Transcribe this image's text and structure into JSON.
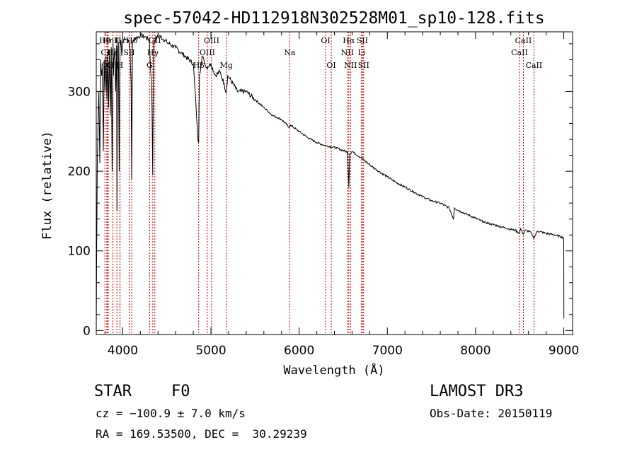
{
  "chart_data": {
    "type": "line",
    "title": "spec-57042-HD112918N302528M01_sp10-128.fits",
    "xlabel": "Wavelength (Å)",
    "ylabel": "Flux (relative)",
    "xlim": [
      3700,
      9100
    ],
    "ylim": [
      -5,
      375
    ],
    "xticks": [
      4000,
      5000,
      6000,
      7000,
      8000,
      9000
    ],
    "yticks": [
      0,
      100,
      200,
      300
    ],
    "series": [
      {
        "name": "flux",
        "x": [
          3700,
          3705,
          3712,
          3720,
          3730,
          3740,
          3750,
          3760,
          3770,
          3780,
          3790,
          3800,
          3810,
          3820,
          3830,
          3840,
          3850,
          3860,
          3870,
          3880,
          3890,
          3895,
          3900,
          3910,
          3920,
          3930,
          3934,
          3940,
          3950,
          3960,
          3965,
          3970,
          3975,
          3980,
          3990,
          4000,
          4020,
          4050,
          4080,
          4095,
          4102,
          4110,
          4130,
          4160,
          4200,
          4250,
          4300,
          4330,
          4340,
          4350,
          4380,
          4420,
          4500,
          4600,
          4700,
          4800,
          4830,
          4850,
          4861,
          4870,
          4900,
          4950,
          5000,
          5050,
          5100,
          5150,
          5172,
          5190,
          5250,
          5300,
          5400,
          5500,
          5600,
          5700,
          5800,
          5890,
          5900,
          6000,
          6100,
          6200,
          6300,
          6400,
          6500,
          6550,
          6563,
          6575,
          6600,
          6700,
          6800,
          6900,
          7000,
          7100,
          7200,
          7300,
          7400,
          7500,
          7600,
          7700,
          7750,
          7760,
          7800,
          7900,
          8000,
          8100,
          8200,
          8300,
          8400,
          8450,
          8498,
          8510,
          8542,
          8560,
          8620,
          8662,
          8700,
          8800,
          8900,
          8990,
          9000,
          9001
        ],
        "y": [
          0,
          100,
          212,
          260,
          300,
          210,
          340,
          320,
          330,
          225,
          340,
          300,
          345,
          290,
          350,
          280,
          352,
          270,
          356,
          200,
          360,
          320,
          340,
          355,
          300,
          358,
          150,
          350,
          362,
          200,
          330,
          355,
          360,
          365,
          345,
          360,
          368,
          365,
          360,
          310,
          190,
          360,
          366,
          368,
          370,
          369,
          365,
          300,
          195,
          360,
          368,
          370,
          362,
          355,
          345,
          335,
          285,
          240,
          236,
          320,
          345,
          330,
          335,
          320,
          325,
          310,
          298,
          320,
          310,
          300,
          300,
          290,
          280,
          270,
          265,
          255,
          258,
          250,
          242,
          236,
          232,
          230,
          226,
          224,
          180,
          222,
          225,
          217,
          208,
          200,
          193,
          186,
          180,
          174,
          168,
          163,
          160,
          154,
          140,
          154,
          151,
          146,
          141,
          136,
          133,
          130,
          127,
          126,
          122,
          128,
          121,
          126,
          124,
          116,
          125,
          122,
          120,
          117,
          115,
          15
        ]
      }
    ],
    "line_markers": [
      {
        "name": "Hθ",
        "x": 3798,
        "row": 1
      },
      {
        "name": "CII",
        "x": 3820,
        "row": 2
      },
      {
        "name": "OII",
        "x": 3830,
        "row": 3
      },
      {
        "name": "Hη",
        "x": 3835,
        "row": 1
      },
      {
        "name": "Hε",
        "x": 3889,
        "row": 2
      },
      {
        "name": "Hζ",
        "x": 3889,
        "row": 3
      },
      {
        "name": "K",
        "x": 3934,
        "row": 1
      },
      {
        "name": "H",
        "x": 3968,
        "row": 3
      },
      {
        "name": "Hε",
        "x": 3970,
        "row": 1
      },
      {
        "name": "SII",
        "x": 4073,
        "row": 2
      },
      {
        "name": "Hδ",
        "x": 4102,
        "row": 1
      },
      {
        "name": "Hγ",
        "x": 4341,
        "row": 2
      },
      {
        "name": "G",
        "x": 4305,
        "row": 3
      },
      {
        "name": "OII",
        "x": 4364,
        "row": 1
      },
      {
        "name": "Hβ",
        "x": 4861,
        "row": 3
      },
      {
        "name": "OIII",
        "x": 4959,
        "row": 2
      },
      {
        "name": "OIII",
        "x": 5007,
        "row": 1
      },
      {
        "name": "Mg",
        "x": 5175,
        "row": 3
      },
      {
        "name": "Na",
        "x": 5893,
        "row": 2
      },
      {
        "name": "OI",
        "x": 6300,
        "row": 1
      },
      {
        "name": "OI",
        "x": 6364,
        "row": 3
      },
      {
        "name": "Hα",
        "x": 6563,
        "row": 1
      },
      {
        "name": "NII",
        "x": 6548,
        "row": 2
      },
      {
        "name": "NII",
        "x": 6583,
        "row": 3
      },
      {
        "name": "SII",
        "x": 6717,
        "row": 1
      },
      {
        "name": "Li",
        "x": 6707,
        "row": 2
      },
      {
        "name": "SII",
        "x": 6731,
        "row": 3
      },
      {
        "name": "CaII",
        "x": 8498,
        "row": 2
      },
      {
        "name": "CaII",
        "x": 8542,
        "row": 1
      },
      {
        "name": "CaII",
        "x": 8662,
        "row": 3
      }
    ]
  },
  "info": {
    "class_label": "STAR",
    "subclass": "F0",
    "survey": "LAMOST DR3",
    "cz": "cz = −100.9 ± 7.0 km/s",
    "obs_date": "Obs-Date: 20150119",
    "coords": "RA = 169.53500, DEC =  30.29239"
  },
  "colors": {
    "spectrum": "#000000",
    "marker": "#cc0000",
    "axes": "#000000"
  }
}
